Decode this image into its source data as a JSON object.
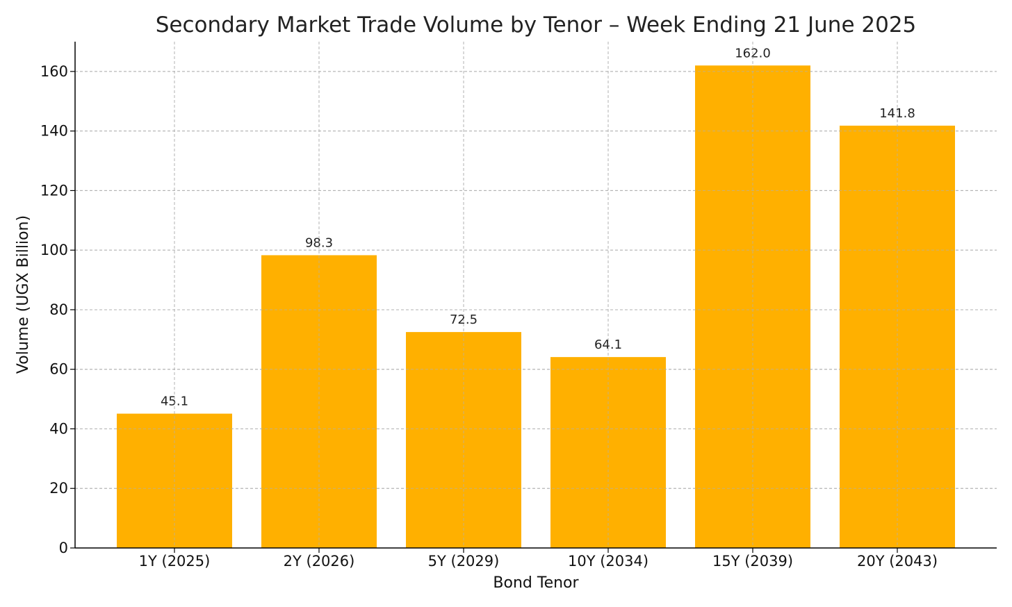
{
  "chart_data": {
    "type": "bar",
    "title": "Secondary Market Trade Volume by Tenor – Week Ending 21 June 2025",
    "xlabel": "Bond Tenor",
    "ylabel": "Volume (UGX Billion)",
    "categories": [
      "1Y (2025)",
      "2Y (2026)",
      "5Y (2029)",
      "10Y (2034)",
      "15Y (2039)",
      "20Y (2043)"
    ],
    "values": [
      45.1,
      98.3,
      72.5,
      64.1,
      162.0,
      141.8
    ],
    "data_labels": [
      "45.1",
      "98.3",
      "72.5",
      "64.1",
      "162.0",
      "141.8"
    ],
    "ylim": [
      0,
      170
    ],
    "yticks": [
      0,
      20,
      40,
      60,
      80,
      100,
      120,
      140,
      160
    ],
    "grid": true,
    "bar_color": "#FFB000"
  }
}
